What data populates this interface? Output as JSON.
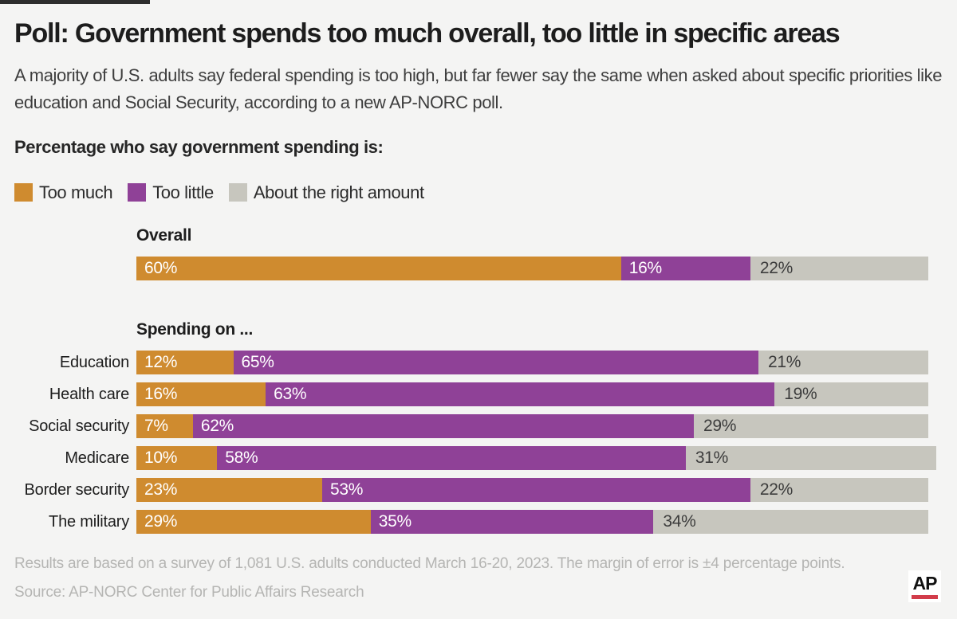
{
  "page": {
    "background": "#f4f4f3",
    "top_strip_color": "#2d2d2d"
  },
  "header": {
    "title": "Poll: Government spends too much overall, too little in specific areas",
    "subtitle": "A majority of U.S. adults say federal spending is too high, but far fewer say the same when asked about specific priorities like education and Social Security, according to a new AP-NORC poll."
  },
  "section_heading": "Percentage who say government spending is:",
  "legend": [
    {
      "label": "Too much",
      "color": "#cf8b2f"
    },
    {
      "label": "Too little",
      "color": "#8f4197"
    },
    {
      "label": "About the right amount",
      "color": "#c7c6be"
    }
  ],
  "chart_data": {
    "type": "bar",
    "orientation": "horizontal-stacked",
    "unit": "percent",
    "xlim": [
      0,
      100
    ],
    "value_label_format": "{v}%",
    "series_names": [
      "Too much",
      "Too little",
      "About the right amount"
    ],
    "colors": [
      "#cf8b2f",
      "#8f4197",
      "#c7c6be"
    ],
    "groups": [
      {
        "heading": "Overall",
        "rows": [
          {
            "label": "",
            "values": [
              60,
              16,
              22
            ]
          }
        ]
      },
      {
        "heading": "Spending on ...",
        "rows": [
          {
            "label": "Education",
            "values": [
              12,
              65,
              21
            ]
          },
          {
            "label": "Health care",
            "values": [
              16,
              63,
              19
            ]
          },
          {
            "label": "Social security",
            "values": [
              7,
              62,
              29
            ]
          },
          {
            "label": "Medicare",
            "values": [
              10,
              58,
              31
            ]
          },
          {
            "label": "Border security",
            "values": [
              23,
              53,
              22
            ]
          },
          {
            "label": "The military",
            "values": [
              29,
              35,
              34
            ]
          }
        ]
      }
    ]
  },
  "footer": {
    "note": "Results are based on a survey of 1,081 U.S. adults conducted March 16-20, 2023. The margin of error is ±4 percentage points.",
    "source": "Source: AP-NORC Center for Public Affairs Research",
    "logo_text": "AP",
    "logo_underline_color": "#d23c4a"
  }
}
